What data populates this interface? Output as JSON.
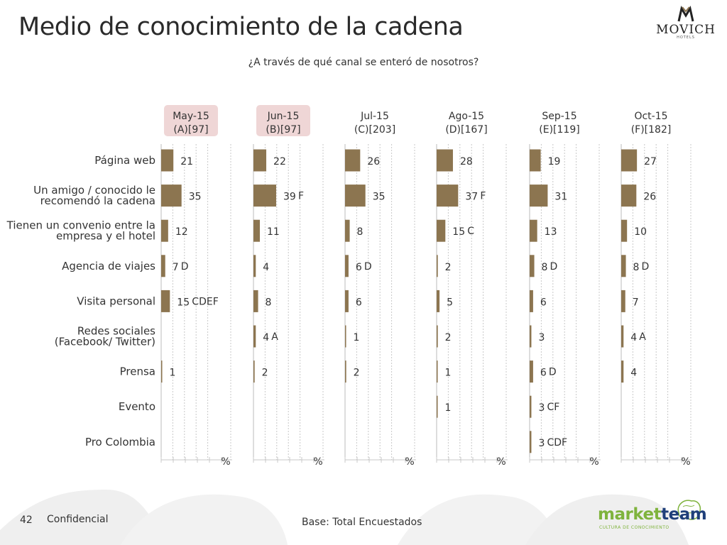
{
  "page": {
    "title": "Medio de conocimiento de la cadena",
    "question": "¿A través de qué canal se enteró de nosotros?",
    "footer_page": "42",
    "footer_conf": "Confidencial",
    "footer_base": "Base: Total Encuestados",
    "logo_brand": "MOVICH",
    "logo_sub": "HOTELS",
    "mt_word_a": "market",
    "mt_word_b": "team",
    "mt_sub": "CULTURA DE CONOCIMIENTO"
  },
  "colors": {
    "bar": "#8c7550",
    "grid": "#c8c8c8",
    "highlight_header": "#efd6d6",
    "swoosh": "#eeeeee"
  },
  "chart_data": {
    "type": "bar",
    "orientation": "horizontal",
    "unit_label": "%",
    "categories": [
      "Página web",
      "Un amigo / conocido le recomendó la cadena",
      "Tienen un convenio entre la empresa y el hotel",
      "Agencia de viajes",
      "Visita personal",
      "Redes sociales (Facebook/ Twitter)",
      "Prensa",
      "Evento",
      "Pro Colombia"
    ],
    "category_lines": [
      [
        "Página web"
      ],
      [
        "Un amigo / conocido le",
        "recomendó la cadena"
      ],
      [
        "Tienen un convenio entre la",
        "empresa y el hotel"
      ],
      [
        "Agencia de viajes"
      ],
      [
        "Visita personal"
      ],
      [
        "Redes sociales",
        "(Facebook/ Twitter)"
      ],
      [
        "Prensa"
      ],
      [
        "Evento"
      ],
      [
        "Pro Colombia"
      ]
    ],
    "xlim": [
      0,
      100
    ],
    "series": [
      {
        "name": "May-15",
        "base": "(A)[97]",
        "highlight": true,
        "values": [
          21,
          35,
          12,
          7,
          15,
          null,
          1,
          null,
          null
        ],
        "sig": [
          "",
          "",
          "",
          "D",
          "CDEF",
          "",
          "",
          "",
          ""
        ]
      },
      {
        "name": "Jun-15",
        "base": "(B)[97]",
        "highlight": true,
        "values": [
          22,
          39,
          11,
          4,
          8,
          4,
          2,
          null,
          null
        ],
        "sig": [
          "",
          "F",
          "",
          "",
          "",
          "A",
          "",
          "",
          ""
        ]
      },
      {
        "name": "Jul-15",
        "base": "(C)[203]",
        "highlight": false,
        "values": [
          26,
          35,
          8,
          6,
          6,
          1,
          2,
          null,
          null
        ],
        "sig": [
          "",
          "",
          "",
          "D",
          "",
          "",
          "",
          "",
          ""
        ]
      },
      {
        "name": "Ago-15",
        "base": "(D)[167]",
        "highlight": false,
        "values": [
          28,
          37,
          15,
          2,
          5,
          2,
          1,
          1,
          null
        ],
        "sig": [
          "",
          "F",
          "C",
          "",
          "",
          "",
          "",
          "",
          ""
        ]
      },
      {
        "name": "Sep-15",
        "base": "(E)[119]",
        "highlight": false,
        "values": [
          19,
          31,
          13,
          8,
          6,
          3,
          6,
          3,
          3
        ],
        "sig": [
          "",
          "",
          "",
          "D",
          "",
          "",
          "D",
          "CF",
          "CDF"
        ]
      },
      {
        "name": "Oct-15",
        "base": "(F)[182]",
        "highlight": false,
        "values": [
          27,
          26,
          10,
          8,
          7,
          4,
          4,
          null,
          null
        ],
        "sig": [
          "",
          "",
          "",
          "D",
          "",
          "A",
          "",
          "",
          ""
        ]
      }
    ]
  }
}
